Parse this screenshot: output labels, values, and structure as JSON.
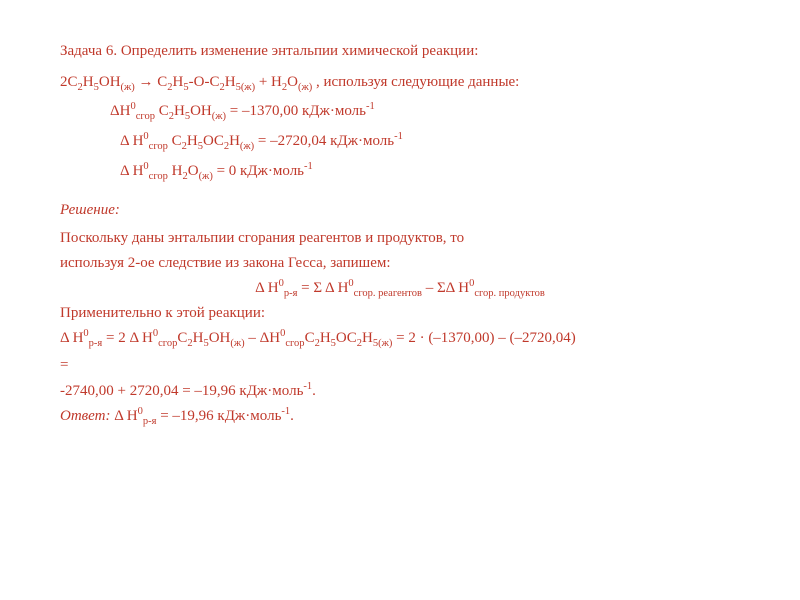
{
  "problem": {
    "number": "Задача 6.",
    "title": "Определить изменение энтальпии химической реакции:",
    "reaction": "2C₂H₅OH(ж) → C₂H₅-O-C₂H₅(ж) + H₂O(ж) , используя следующие данные:",
    "data1": "ΔH⁰сгор C₂H₅OH(ж) = –1370,00 кДж·моль⁻¹",
    "data2": "Δ H⁰сгор C₂H₅OC₂H(ж) = –2720,04 кДж·моль⁻¹",
    "data3": "Δ H⁰сгор H₂O(ж) = 0 кДж·моль⁻¹"
  },
  "solution": {
    "header": "Решение:",
    "intro1": "Поскольку даны энтальпии сгорания реагентов и продуктов, то",
    "intro2": "используя 2-ое следствие из закона Гесса, запишем:",
    "formula1": "Δ H⁰р-я = Σ Δ H⁰сгор. реагентов – ΣΔ H⁰сгор. продуктов",
    "apply": "Применительно к этой реакции:",
    "calc1": "Δ H⁰р-я =  2 Δ H⁰сгорC₂H₅OH(ж) – ΔH⁰сгорC₂H₅OC₂H₅(ж) = 2 · (–1370,00) – (–2720,04) =",
    "calc2": " -2740,00 + 2720,04 = –19,96 кДж·моль⁻¹.",
    "answer_label": "Ответ:",
    "answer_value": "Δ H⁰р-я = –19,96 кДж·моль⁻¹."
  },
  "colors": {
    "text": "#c0392b",
    "background": "#ffffff"
  }
}
